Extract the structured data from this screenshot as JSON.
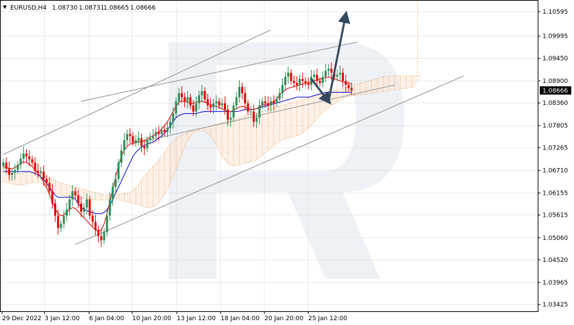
{
  "header": {
    "symbol": "EURUSD,H4",
    "open": "1.08730",
    "high": "1.08731",
    "low": "1.08665",
    "close": "1.08666"
  },
  "colors": {
    "bull": "#2e8b57",
    "bear": "#e00000",
    "tenkan": "#e00000",
    "kijun": "#0000cc",
    "cloud": "#f0a060",
    "channel": "#a0a0a0",
    "arrow": "#34495e",
    "watermark": "#eef1f5",
    "grid": "#dcdcdc",
    "current_bg": "#000000"
  },
  "chart_data": {
    "type": "candlestick",
    "title": "EURUSD,H4",
    "y_ticks": [
      "1.10595",
      "1.09995",
      "1.09450",
      "1.08900",
      "1.08360",
      "1.07805",
      "1.07265",
      "1.06710",
      "1.06155",
      "1.05615",
      "1.05060",
      "1.04520",
      "1.03965",
      "1.03425"
    ],
    "ylim": [
      1.0326,
      1.1088
    ],
    "x_ticks": [
      "29 Dec 2022",
      "3 Jan 12:00",
      "6 Jan 04:00",
      "10 Jan 20:00",
      "13 Jan 12:00",
      "18 Jan 04:00",
      "20 Jan 20:00",
      "25 Jan 12:00"
    ],
    "current_price": "1.08666",
    "grid": true,
    "close_prices": [
      1.069,
      1.0675,
      1.066,
      1.0665,
      1.0672,
      1.0685,
      1.07,
      1.0712,
      1.0705,
      1.0698,
      1.069,
      1.067,
      1.0665,
      1.0668,
      1.065,
      1.064,
      1.062,
      1.059,
      1.056,
      1.053,
      1.054,
      1.056,
      1.0575,
      1.06,
      1.062,
      1.061,
      1.059,
      1.057,
      1.058,
      1.06,
      1.056,
      1.0545,
      1.0525,
      1.051,
      1.05,
      1.052,
      1.056,
      1.06,
      1.063,
      1.065,
      1.069,
      1.072,
      1.0745,
      1.076,
      1.0755,
      1.074,
      1.0745,
      1.075,
      1.073,
      1.0725,
      1.0745,
      1.075,
      1.0755,
      1.0765,
      1.076,
      1.077,
      1.0765,
      1.0775,
      1.079,
      1.081,
      1.084,
      1.086,
      1.085,
      1.084,
      1.085,
      1.083,
      1.0815,
      1.0835,
      1.0855,
      1.0865,
      1.0845,
      1.083,
      1.0825,
      1.0835,
      1.084,
      1.083,
      1.0835,
      1.082,
      1.0795,
      1.08,
      1.083,
      1.085,
      1.0875,
      1.086,
      1.0835,
      1.0815,
      1.0815,
      1.079,
      1.08,
      1.083,
      1.084,
      1.0835,
      1.083,
      1.084,
      1.0835,
      1.0845,
      1.086,
      1.088,
      1.09,
      1.091,
      1.089,
      1.0885,
      1.088,
      1.0895,
      1.089,
      1.0885,
      1.088,
      1.09,
      1.0905,
      1.089,
      1.0885,
      1.09,
      1.0915,
      1.092,
      1.091,
      1.09,
      1.0905,
      1.091,
      1.089,
      1.088,
      1.0873,
      1.0866
    ],
    "tenkan": [
      1.068,
      1.0678,
      1.0676,
      1.0675,
      1.0678,
      1.0682,
      1.0688,
      1.0692,
      1.069,
      1.0686,
      1.068,
      1.0672,
      1.0664,
      1.0655,
      1.0642,
      1.0628,
      1.0612,
      1.0595,
      1.0578,
      1.0565,
      1.056,
      1.0562,
      1.0568,
      1.0575,
      1.058,
      1.0578,
      1.057,
      1.0562,
      1.0555,
      1.0548,
      1.054,
      1.0532,
      1.0525,
      1.0522,
      1.0525,
      1.054,
      1.0565,
      1.0595,
      1.0625,
      1.0655,
      1.0682,
      1.0705,
      1.072,
      1.073,
      1.0735,
      1.0738,
      1.074,
      1.0742,
      1.0742,
      1.0744,
      1.0748,
      1.0752,
      1.0756,
      1.076,
      1.0765,
      1.0772,
      1.078,
      1.079,
      1.0802,
      1.0815,
      1.0828,
      1.0838,
      1.084,
      1.084,
      1.0838,
      1.0835,
      1.0835,
      1.0838,
      1.084,
      1.084,
      1.0838,
      1.0835,
      1.0832,
      1.083,
      1.0828,
      1.0825,
      1.0822,
      1.0818,
      1.0815,
      1.0815,
      1.0818,
      1.0822,
      1.0826,
      1.0828,
      1.0826,
      1.0822,
      1.082,
      1.082,
      1.0822,
      1.0826,
      1.083,
      1.0832,
      1.0834,
      1.0836,
      1.084,
      1.0846,
      1.0855,
      1.0862,
      1.0868,
      1.0872,
      1.0874,
      1.0876,
      1.0878,
      1.088,
      1.0882,
      1.0884,
      1.0886,
      1.0888,
      1.089,
      1.0892,
      1.0894,
      1.0896,
      1.0898,
      1.0899,
      1.0898,
      1.0896,
      1.0893,
      1.089,
      1.0888,
      1.0886,
      1.0884,
      1.0882
    ],
    "kijun": [
      1.0668,
      1.0668,
      1.0668,
      1.0668,
      1.0668,
      1.0668,
      1.0668,
      1.0668,
      1.0668,
      1.0668,
      1.0666,
      1.0664,
      1.066,
      1.0655,
      1.0648,
      1.064,
      1.063,
      1.062,
      1.061,
      1.0605,
      1.0605,
      1.0605,
      1.0605,
      1.0605,
      1.0605,
      1.06,
      1.059,
      1.058,
      1.0575,
      1.0572,
      1.057,
      1.0568,
      1.0565,
      1.0565,
      1.0565,
      1.0568,
      1.0575,
      1.0585,
      1.06,
      1.0615,
      1.063,
      1.0645,
      1.066,
      1.0675,
      1.069,
      1.0705,
      1.0715,
      1.0722,
      1.0728,
      1.0732,
      1.0735,
      1.0738,
      1.074,
      1.0745,
      1.075,
      1.0755,
      1.0762,
      1.077,
      1.078,
      1.079,
      1.08,
      1.0805,
      1.0808,
      1.081,
      1.081,
      1.081,
      1.081,
      1.081,
      1.0812,
      1.0814,
      1.0815,
      1.0815,
      1.0815,
      1.0815,
      1.0815,
      1.0815,
      1.0815,
      1.0815,
      1.0815,
      1.0815,
      1.0815,
      1.0815,
      1.0816,
      1.0818,
      1.082,
      1.082,
      1.082,
      1.082,
      1.0822,
      1.0824,
      1.0826,
      1.0828,
      1.083,
      1.0832,
      1.0834,
      1.0836,
      1.0838,
      1.084,
      1.0842,
      1.0844,
      1.0846,
      1.0848,
      1.085,
      1.085,
      1.085,
      1.085,
      1.085,
      1.0852,
      1.0854,
      1.0856,
      1.0858,
      1.086,
      1.0862,
      1.0862,
      1.0862,
      1.0862,
      1.0862,
      1.0862,
      1.0862,
      1.0862,
      1.0862,
      1.0862
    ],
    "cloud_upper": [
      1.067,
      1.0668,
      1.0665,
      1.0663,
      1.0662,
      1.0662,
      1.0663,
      1.0665,
      1.0666,
      1.0667,
      1.0668,
      1.0668,
      1.0667,
      1.0665,
      1.0662,
      1.0658,
      1.0654,
      1.065,
      1.0646,
      1.0642,
      1.064,
      1.0638,
      1.0636,
      1.0634,
      1.0632,
      1.063,
      1.0628,
      1.0626,
      1.0624,
      1.0622,
      1.062,
      1.0618,
      1.0616,
      1.0614,
      1.0612,
      1.0611,
      1.061,
      1.061,
      1.0611,
      1.0612,
      1.0612,
      1.0613,
      1.0614,
      1.0615,
      1.0618,
      1.0622,
      1.0628,
      1.0636,
      1.0646,
      1.0656,
      1.0664,
      1.0672,
      1.068,
      1.0688,
      1.0696,
      1.0705,
      1.0715,
      1.0725,
      1.0735,
      1.0742,
      1.0748,
      1.0753,
      1.0757,
      1.076,
      1.0763,
      1.0766,
      1.0768,
      1.077,
      1.0772,
      1.0774,
      1.0776,
      1.0778,
      1.078,
      1.0782,
      1.0784,
      1.0786,
      1.0788,
      1.079,
      1.0792,
      1.0794,
      1.0796,
      1.0798,
      1.08,
      1.0802,
      1.0804,
      1.0806,
      1.0808,
      1.081,
      1.0812,
      1.0814,
      1.0816,
      1.0818,
      1.082,
      1.0822,
      1.0824,
      1.0826,
      1.0828,
      1.083,
      1.0832,
      1.0834,
      1.0836,
      1.0838,
      1.084,
      1.0842,
      1.0844,
      1.0846,
      1.0848,
      1.085,
      1.0852,
      1.0854,
      1.0856,
      1.0858,
      1.086,
      1.0862,
      1.0864,
      1.0866,
      1.0868,
      1.087,
      1.0872,
      1.0874,
      1.0876,
      1.0878,
      1.088,
      1.0882,
      1.0884,
      1.0886,
      1.0888,
      1.089,
      1.0892,
      1.0894,
      1.0896,
      1.0898,
      1.09,
      1.0901,
      1.0902,
      1.0902,
      1.0902,
      1.0902,
      1.0902,
      1.0902,
      1.0902,
      1.0902,
      1.0902,
      1.0902,
      1.0902,
      1.0902
    ],
    "cloud_lower": [
      1.0645,
      1.0642,
      1.064,
      1.0638,
      1.0636,
      1.0635,
      1.0635,
      1.0636,
      1.0638,
      1.064,
      1.0642,
      1.0643,
      1.0642,
      1.064,
      1.0636,
      1.063,
      1.0625,
      1.062,
      1.0615,
      1.0612,
      1.061,
      1.0609,
      1.0608,
      1.0607,
      1.0606,
      1.0605,
      1.0604,
      1.0603,
      1.0602,
      1.0601,
      1.06,
      1.0599,
      1.0598,
      1.0598,
      1.0598,
      1.0598,
      1.0599,
      1.06,
      1.0601,
      1.0602,
      1.06,
      1.0598,
      1.0596,
      1.0594,
      1.0592,
      1.059,
      1.0588,
      1.0586,
      1.0584,
      1.0582,
      1.058,
      1.058,
      1.0582,
      1.0586,
      1.0592,
      1.06,
      1.0612,
      1.0625,
      1.064,
      1.0656,
      1.0672,
      1.069,
      1.071,
      1.073,
      1.0745,
      1.0755,
      1.0762,
      1.0766,
      1.0768,
      1.0768,
      1.0766,
      1.0762,
      1.0755,
      1.0745,
      1.0732,
      1.0718,
      1.0705,
      1.0695,
      1.0688,
      1.0684,
      1.0682,
      1.0682,
      1.0684,
      1.0686,
      1.0688,
      1.069,
      1.0692,
      1.0694,
      1.0698,
      1.0702,
      1.0708,
      1.0714,
      1.072,
      1.0726,
      1.0732,
      1.0738,
      1.0742,
      1.0746,
      1.0748,
      1.075,
      1.0752,
      1.0754,
      1.0756,
      1.0758,
      1.0762,
      1.0768,
      1.0775,
      1.0782,
      1.079,
      1.0798,
      1.0806,
      1.0814,
      1.082,
      1.0825,
      1.083,
      1.0834,
      1.0838,
      1.0842,
      1.0846,
      1.085,
      1.0852,
      1.0853,
      1.0854,
      1.0855,
      1.0856,
      1.0857,
      1.0858,
      1.0859,
      1.086,
      1.0861,
      1.0862,
      1.0863,
      1.0864,
      1.0865,
      1.0866,
      1.0867,
      1.0868,
      1.0869,
      1.087,
      1.0871,
      1.0872,
      1.0873,
      1.0874,
      1.0875
    ],
    "channel_lines": [
      {
        "x1": 0,
        "y1": 1.071,
        "x2": 93,
        "y2": 1.1015
      },
      {
        "x1": 27,
        "y1": 1.084,
        "x2": 123,
        "y2": 1.0985
      },
      {
        "x1": 44,
        "y1": 1.0735,
        "x2": 136,
        "y2": 1.088
      },
      {
        "x1": 25,
        "y1": 1.049,
        "x2": 160,
        "y2": 1.0902
      }
    ],
    "forecast_path": [
      {
        "x": 107,
        "y": 1.0895
      },
      {
        "x": 113,
        "y": 1.084
      },
      {
        "x": 119,
        "y": 1.1052
      }
    ]
  }
}
